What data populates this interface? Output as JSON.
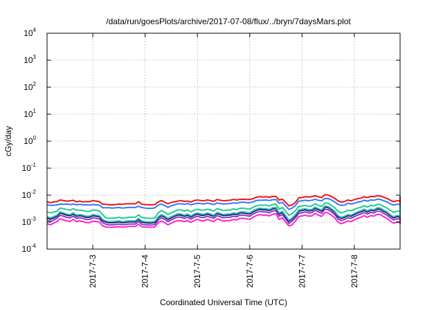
{
  "chart_data": {
    "type": "line",
    "title": "/data/run/goesPlots/archive/2017-07-08/flux/../bryn/7daysMars.plot",
    "xlabel": "Coordinated Universal Time (UTC)",
    "ylabel": "cGy/day",
    "y_scale": "log",
    "ylim_exponent": [
      -4,
      4
    ],
    "y_tick_base": "10",
    "y_tick_exponents": [
      "4",
      "3",
      "2",
      "1",
      "0",
      "-1",
      "-2",
      "-3",
      "-4"
    ],
    "x_range": [
      "2017-07-02 03:00",
      "2017-07-08 21:00"
    ],
    "x_ticks": [
      "2017-7-3",
      "2017-7-4",
      "2017-7-5",
      "2017-7-6",
      "2017-7-7",
      "2017-7-8"
    ],
    "grid": true,
    "series_colors": [
      "#ee1111",
      "#3377ff",
      "#22cc88",
      "#33bbcc",
      "#111144",
      "#8833cc",
      "#ff22cc"
    ],
    "series_x_start": "2017-07-02 03:00",
    "series_x_step_hours": 1.5,
    "series": [
      {
        "color": "#ee1111",
        "log10_values": [
          -2.24,
          -2.28,
          -2.25,
          -2.24,
          -2.18,
          -2.2,
          -2.22,
          -2.21,
          -2.19,
          -2.25,
          -2.22,
          -2.25,
          -2.24,
          -2.24,
          -2.2,
          -2.22,
          -2.24,
          -2.34,
          -2.34,
          -2.36,
          -2.36,
          -2.35,
          -2.33,
          -2.34,
          -2.32,
          -2.32,
          -2.32,
          -2.32,
          -2.24,
          -2.34,
          -2.35,
          -2.36,
          -2.36,
          -2.35,
          -2.25,
          -2.2,
          -2.26,
          -2.32,
          -2.27,
          -2.25,
          -2.22,
          -2.2,
          -2.23,
          -2.22,
          -2.26,
          -2.2,
          -2.18,
          -2.2,
          -2.21,
          -2.18,
          -2.2,
          -2.23,
          -2.16,
          -2.19,
          -2.21,
          -2.2,
          -2.19,
          -2.16,
          -2.18,
          -2.16,
          -2.15,
          -2.16,
          -2.16,
          -2.13,
          -2.08,
          -2.06,
          -2.07,
          -2.06,
          -2.08,
          -2.05,
          -2.05,
          -2.18,
          -2.15,
          -2.27,
          -2.4,
          -2.36,
          -2.27,
          -2.1,
          -2.09,
          -2.06,
          -2.07,
          -2.06,
          -2.02,
          -2.06,
          -2.09,
          -1.98,
          -2.0,
          -2.05,
          -2.12,
          -2.21,
          -2.26,
          -2.24,
          -2.18,
          -2.21,
          -2.17,
          -2.13,
          -2.11,
          -2.06,
          -2.09,
          -2.05,
          -2.06,
          -2.02,
          -2.03,
          -2.08,
          -2.12,
          -2.19,
          -2.24,
          -2.21,
          -2.21,
          -2.19,
          -2.15,
          -2.13,
          -2.1,
          -2.06,
          -2.07,
          -2.1,
          -2.14,
          -2.13,
          -2.17,
          -2.21,
          -2.21,
          -2.27,
          -2.24,
          -2.12
        ]
      },
      {
        "color": "#3377ff",
        "log10_values": [
          -2.36,
          -2.38,
          -2.38,
          -2.36,
          -2.33,
          -2.34,
          -2.33,
          -2.35,
          -2.33,
          -2.36,
          -2.34,
          -2.36,
          -2.36,
          -2.37,
          -2.35,
          -2.36,
          -2.37,
          -2.47,
          -2.47,
          -2.47,
          -2.48,
          -2.47,
          -2.46,
          -2.48,
          -2.47,
          -2.45,
          -2.46,
          -2.46,
          -2.41,
          -2.46,
          -2.48,
          -2.49,
          -2.49,
          -2.47,
          -2.37,
          -2.33,
          -2.39,
          -2.45,
          -2.4,
          -2.36,
          -2.32,
          -2.32,
          -2.34,
          -2.31,
          -2.36,
          -2.33,
          -2.3,
          -2.31,
          -2.33,
          -2.29,
          -2.32,
          -2.35,
          -2.29,
          -2.31,
          -2.33,
          -2.32,
          -2.31,
          -2.29,
          -2.3,
          -2.27,
          -2.26,
          -2.28,
          -2.28,
          -2.25,
          -2.2,
          -2.19,
          -2.19,
          -2.18,
          -2.2,
          -2.17,
          -2.16,
          -2.3,
          -2.27,
          -2.4,
          -2.53,
          -2.48,
          -2.38,
          -2.22,
          -2.21,
          -2.19,
          -2.21,
          -2.19,
          -2.15,
          -2.19,
          -2.21,
          -2.12,
          -2.13,
          -2.18,
          -2.25,
          -2.34,
          -2.38,
          -2.37,
          -2.3,
          -2.33,
          -2.3,
          -2.26,
          -2.24,
          -2.19,
          -2.22,
          -2.18,
          -2.19,
          -2.15,
          -2.16,
          -2.21,
          -2.25,
          -2.32,
          -2.37,
          -2.34,
          -2.34,
          -2.32,
          -2.28,
          -2.26,
          -2.23,
          -2.19,
          -2.2,
          -2.23,
          -2.27,
          -2.26,
          -2.3,
          -2.34,
          -2.34,
          -2.4,
          -2.37,
          -2.25
        ]
      },
      {
        "color": "#22cc88",
        "log10_values": [
          -2.62,
          -2.66,
          -2.63,
          -2.6,
          -2.48,
          -2.5,
          -2.53,
          -2.56,
          -2.5,
          -2.56,
          -2.56,
          -2.57,
          -2.6,
          -2.6,
          -2.55,
          -2.56,
          -2.59,
          -2.72,
          -2.84,
          -2.86,
          -2.85,
          -2.85,
          -2.82,
          -2.86,
          -2.84,
          -2.82,
          -2.82,
          -2.82,
          -2.73,
          -2.83,
          -2.85,
          -2.86,
          -2.86,
          -2.84,
          -2.66,
          -2.57,
          -2.63,
          -2.72,
          -2.65,
          -2.6,
          -2.55,
          -2.55,
          -2.59,
          -2.55,
          -2.62,
          -2.56,
          -2.52,
          -2.56,
          -2.56,
          -2.52,
          -2.55,
          -2.59,
          -2.5,
          -2.54,
          -2.57,
          -2.56,
          -2.55,
          -2.51,
          -2.54,
          -2.49,
          -2.48,
          -2.5,
          -2.52,
          -2.45,
          -2.4,
          -2.37,
          -2.38,
          -2.37,
          -2.4,
          -2.35,
          -2.33,
          -2.52,
          -2.46,
          -2.6,
          -2.75,
          -2.68,
          -2.57,
          -2.42,
          -2.4,
          -2.38,
          -2.42,
          -2.4,
          -2.32,
          -2.38,
          -2.42,
          -2.29,
          -2.3,
          -2.38,
          -2.47,
          -2.6,
          -2.66,
          -2.62,
          -2.56,
          -2.58,
          -2.53,
          -2.48,
          -2.45,
          -2.39,
          -2.44,
          -2.38,
          -2.4,
          -2.34,
          -2.35,
          -2.42,
          -2.48,
          -2.56,
          -2.64,
          -2.6,
          -2.6,
          -2.57,
          -2.52,
          -2.49,
          -2.45,
          -2.4,
          -2.42,
          -2.45,
          -2.5,
          -2.5,
          -2.54,
          -2.6,
          -2.6,
          -2.66,
          -2.63,
          -2.48
        ]
      },
      {
        "color": "#33bbcc",
        "log10_values": [
          -2.8,
          -2.84,
          -2.8,
          -2.74,
          -2.62,
          -2.66,
          -2.7,
          -2.72,
          -2.66,
          -2.74,
          -2.72,
          -2.74,
          -2.78,
          -2.78,
          -2.72,
          -2.74,
          -2.76,
          -2.9,
          -2.96,
          -2.98,
          -2.98,
          -2.97,
          -2.95,
          -2.98,
          -2.97,
          -2.95,
          -2.95,
          -2.95,
          -2.86,
          -2.96,
          -2.98,
          -2.99,
          -2.99,
          -2.97,
          -2.8,
          -2.72,
          -2.78,
          -2.86,
          -2.8,
          -2.74,
          -2.69,
          -2.7,
          -2.74,
          -2.7,
          -2.77,
          -2.7,
          -2.66,
          -2.7,
          -2.71,
          -2.66,
          -2.7,
          -2.74,
          -2.64,
          -2.68,
          -2.72,
          -2.7,
          -2.7,
          -2.66,
          -2.68,
          -2.62,
          -2.62,
          -2.64,
          -2.66,
          -2.58,
          -2.52,
          -2.48,
          -2.5,
          -2.5,
          -2.53,
          -2.47,
          -2.45,
          -2.66,
          -2.6,
          -2.76,
          -2.93,
          -2.84,
          -2.72,
          -2.55,
          -2.53,
          -2.5,
          -2.54,
          -2.53,
          -2.44,
          -2.5,
          -2.55,
          -2.4,
          -2.42,
          -2.5,
          -2.6,
          -2.76,
          -2.82,
          -2.78,
          -2.72,
          -2.74,
          -2.68,
          -2.62,
          -2.58,
          -2.52,
          -2.58,
          -2.52,
          -2.54,
          -2.47,
          -2.48,
          -2.56,
          -2.62,
          -2.72,
          -2.8,
          -2.76,
          -2.76,
          -2.73,
          -2.67,
          -2.63,
          -2.59,
          -2.53,
          -2.55,
          -2.59,
          -2.64,
          -2.64,
          -2.69,
          -2.76,
          -2.76,
          -2.82,
          -2.79,
          -2.62
        ]
      },
      {
        "color": "#111144",
        "log10_values": [
          -2.85,
          -2.89,
          -2.85,
          -2.78,
          -2.66,
          -2.7,
          -2.74,
          -2.76,
          -2.7,
          -2.78,
          -2.76,
          -2.78,
          -2.82,
          -2.82,
          -2.76,
          -2.78,
          -2.8,
          -2.94,
          -3.0,
          -3.02,
          -3.02,
          -3.01,
          -2.99,
          -3.02,
          -3.01,
          -2.99,
          -2.99,
          -2.99,
          -2.9,
          -3.0,
          -3.02,
          -3.03,
          -3.03,
          -3.01,
          -2.84,
          -2.76,
          -2.82,
          -2.9,
          -2.84,
          -2.78,
          -2.73,
          -2.74,
          -2.78,
          -2.74,
          -2.81,
          -2.74,
          -2.7,
          -2.74,
          -2.75,
          -2.7,
          -2.74,
          -2.78,
          -2.68,
          -2.72,
          -2.76,
          -2.74,
          -2.74,
          -2.7,
          -2.72,
          -2.66,
          -2.66,
          -2.68,
          -2.7,
          -2.62,
          -2.56,
          -2.52,
          -2.54,
          -2.54,
          -2.57,
          -2.51,
          -2.49,
          -2.7,
          -2.64,
          -2.8,
          -2.97,
          -2.88,
          -2.76,
          -2.59,
          -2.57,
          -2.54,
          -2.58,
          -2.57,
          -2.48,
          -2.54,
          -2.59,
          -2.44,
          -2.46,
          -2.54,
          -2.64,
          -2.8,
          -2.86,
          -2.82,
          -2.76,
          -2.78,
          -2.72,
          -2.66,
          -2.62,
          -2.56,
          -2.62,
          -2.56,
          -2.58,
          -2.51,
          -2.52,
          -2.6,
          -2.66,
          -2.76,
          -2.84,
          -2.8,
          -2.8,
          -2.77,
          -2.71,
          -2.67,
          -2.63,
          -2.57,
          -2.59,
          -2.63,
          -2.68,
          -2.68,
          -2.73,
          -2.8,
          -2.8,
          -2.86,
          -2.83,
          -2.66
        ]
      },
      {
        "color": "#8833cc",
        "log10_values": [
          -2.93,
          -2.97,
          -2.93,
          -2.86,
          -2.74,
          -2.78,
          -2.82,
          -2.84,
          -2.78,
          -2.86,
          -2.84,
          -2.86,
          -2.9,
          -2.9,
          -2.84,
          -2.86,
          -2.88,
          -3.02,
          -3.08,
          -3.1,
          -3.1,
          -3.09,
          -3.07,
          -3.1,
          -3.09,
          -3.07,
          -3.07,
          -3.07,
          -2.98,
          -3.08,
          -3.1,
          -3.11,
          -3.11,
          -3.09,
          -2.92,
          -2.84,
          -2.9,
          -2.98,
          -2.92,
          -2.86,
          -2.81,
          -2.82,
          -2.86,
          -2.82,
          -2.89,
          -2.82,
          -2.78,
          -2.82,
          -2.83,
          -2.78,
          -2.82,
          -2.86,
          -2.76,
          -2.8,
          -2.84,
          -2.82,
          -2.82,
          -2.78,
          -2.8,
          -2.74,
          -2.74,
          -2.76,
          -2.78,
          -2.7,
          -2.64,
          -2.6,
          -2.62,
          -2.62,
          -2.65,
          -2.59,
          -2.57,
          -2.78,
          -2.72,
          -2.88,
          -3.05,
          -2.96,
          -2.84,
          -2.67,
          -2.65,
          -2.62,
          -2.66,
          -2.65,
          -2.56,
          -2.62,
          -2.67,
          -2.52,
          -2.54,
          -2.62,
          -2.72,
          -2.88,
          -2.94,
          -2.9,
          -2.84,
          -2.86,
          -2.8,
          -2.74,
          -2.7,
          -2.64,
          -2.7,
          -2.64,
          -2.66,
          -2.59,
          -2.6,
          -2.68,
          -2.74,
          -2.84,
          -2.92,
          -2.88,
          -2.88,
          -2.85,
          -2.79,
          -2.75,
          -2.71,
          -2.65,
          -2.67,
          -2.71,
          -2.76,
          -2.76,
          -2.81,
          -2.88,
          -2.88,
          -2.94,
          -2.91,
          -2.74
        ]
      },
      {
        "color": "#ff22cc",
        "log10_values": [
          -3.06,
          -3.1,
          -3.04,
          -2.98,
          -2.88,
          -2.92,
          -2.95,
          -2.98,
          -2.9,
          -2.98,
          -2.95,
          -2.98,
          -3.02,
          -3.02,
          -2.96,
          -2.98,
          -3.0,
          -3.14,
          -3.18,
          -3.19,
          -3.19,
          -3.18,
          -3.17,
          -3.19,
          -3.18,
          -3.16,
          -3.16,
          -3.16,
          -3.08,
          -3.17,
          -3.18,
          -3.19,
          -3.19,
          -3.18,
          -3.02,
          -2.96,
          -3.02,
          -3.1,
          -3.04,
          -2.98,
          -2.94,
          -2.95,
          -2.98,
          -2.94,
          -3.01,
          -2.94,
          -2.9,
          -2.94,
          -2.95,
          -2.9,
          -2.94,
          -2.98,
          -2.88,
          -2.92,
          -2.96,
          -2.94,
          -2.94,
          -2.9,
          -2.92,
          -2.86,
          -2.86,
          -2.88,
          -2.9,
          -2.82,
          -2.76,
          -2.72,
          -2.74,
          -2.74,
          -2.77,
          -2.71,
          -2.69,
          -2.9,
          -2.84,
          -3.0,
          -3.14,
          -3.1,
          -2.96,
          -2.79,
          -2.77,
          -2.74,
          -2.78,
          -2.77,
          -2.68,
          -2.74,
          -2.79,
          -2.64,
          -2.66,
          -2.74,
          -2.84,
          -3.0,
          -3.06,
          -3.02,
          -2.96,
          -2.98,
          -2.92,
          -2.86,
          -2.82,
          -2.76,
          -2.82,
          -2.76,
          -2.78,
          -2.71,
          -2.72,
          -2.8,
          -2.86,
          -2.96,
          -3.04,
          -3.0,
          -3.0,
          -2.97,
          -2.91,
          -2.87,
          -2.83,
          -2.77,
          -2.79,
          -2.83,
          -2.88,
          -2.88,
          -2.93,
          -3.0,
          -3.0,
          -3.06,
          -3.03,
          -2.86
        ]
      }
    ]
  }
}
